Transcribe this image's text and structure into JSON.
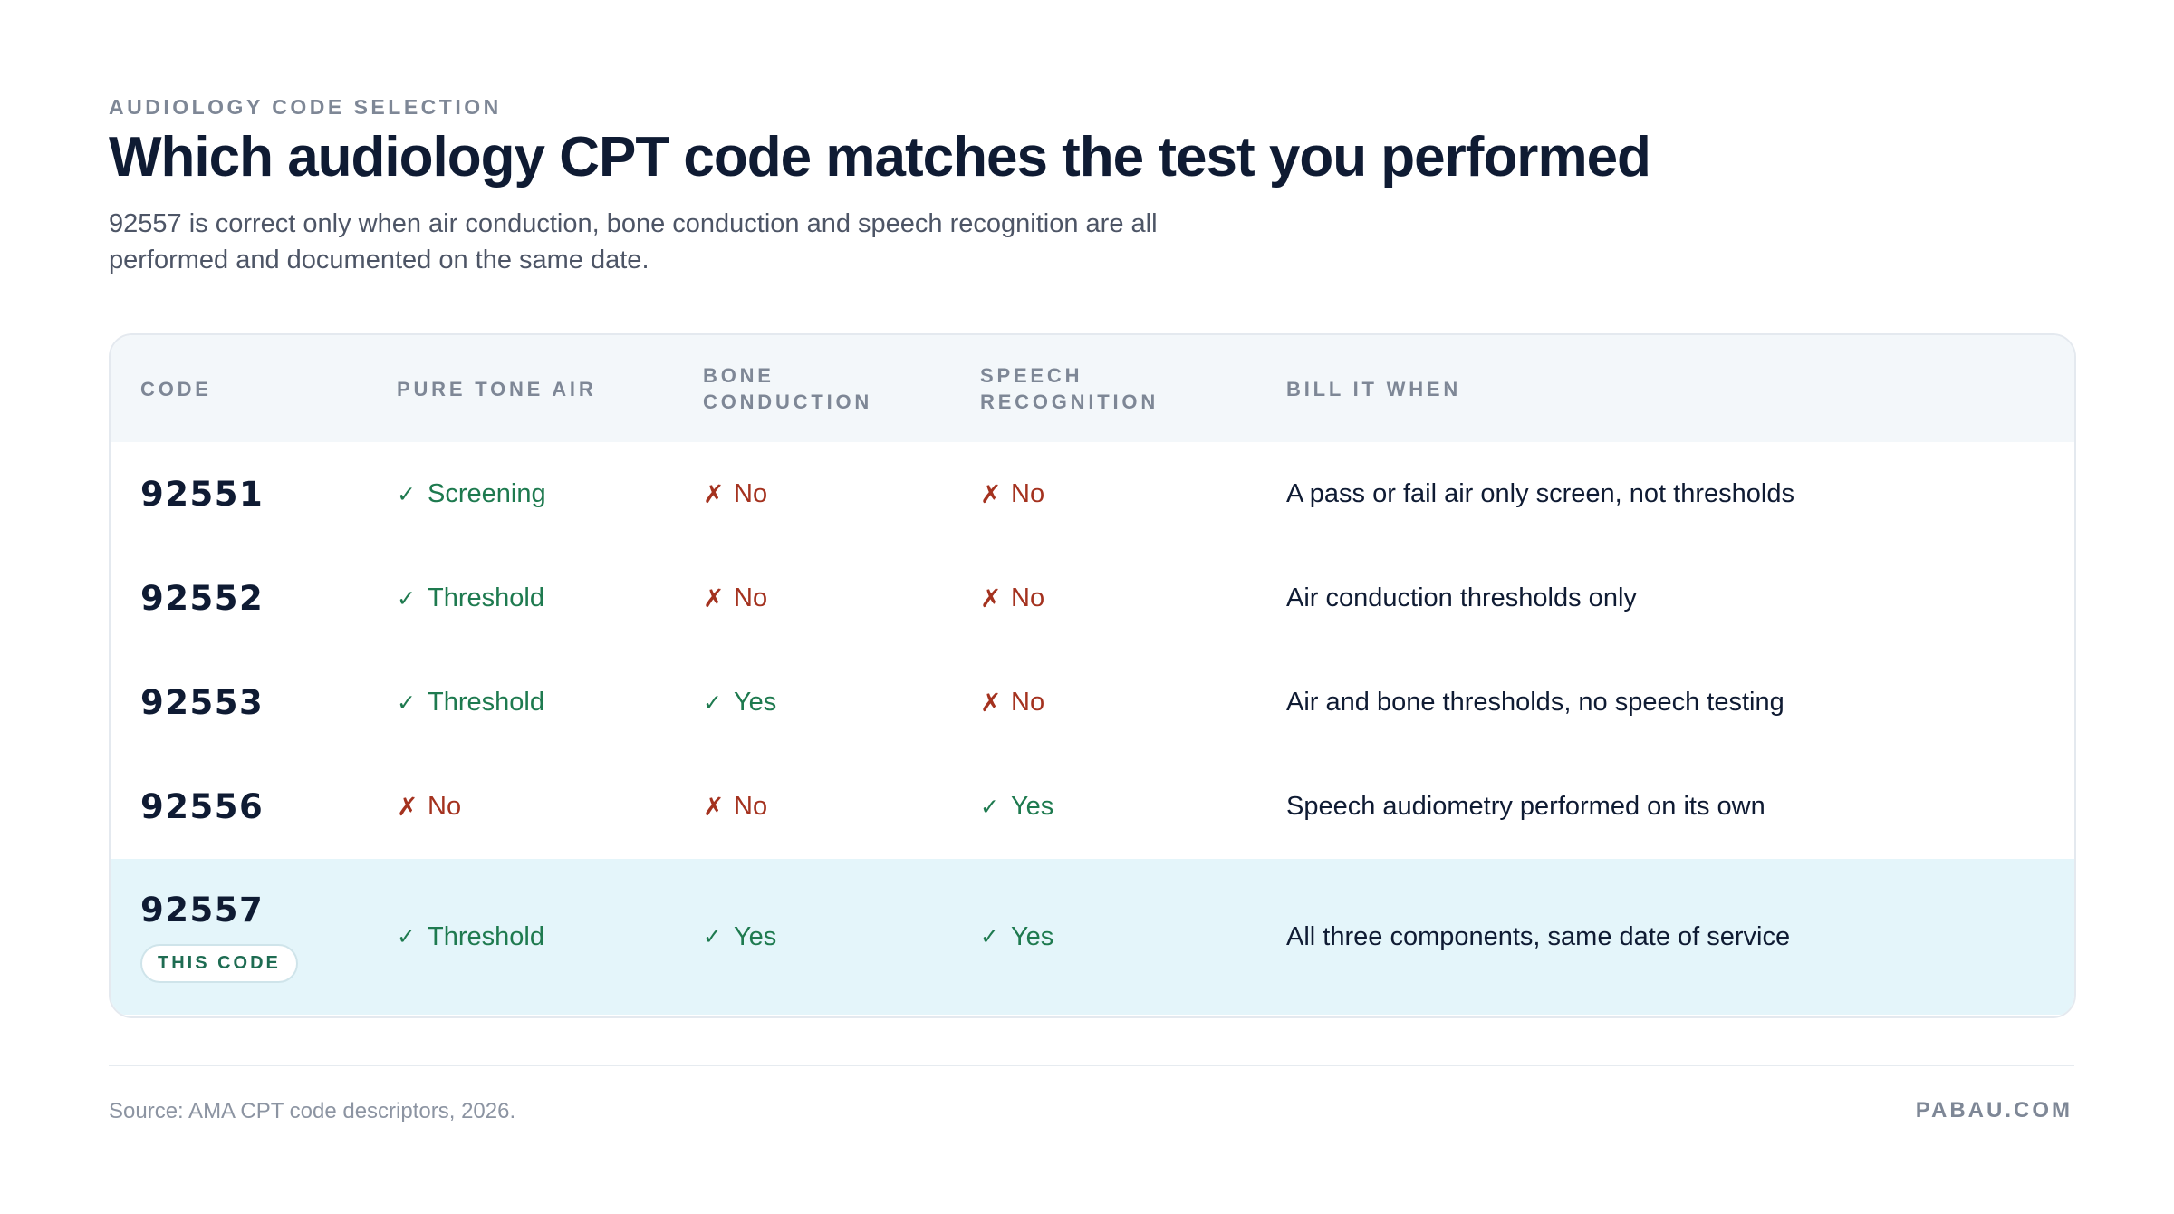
{
  "header": {
    "eyebrow": "AUDIOLOGY CODE SELECTION",
    "title": "Which audiology CPT code matches the test you performed",
    "subtitle": "92557 is correct only when air conduction, bone conduction and speech recognition are all performed and documented on the same date."
  },
  "table": {
    "columns": {
      "code": "CODE",
      "pure_tone_air": "PURE TONE AIR",
      "bone_line1": "BONE",
      "bone_line2": "CONDUCTION",
      "speech_line1": "SPEECH",
      "speech_line2": "RECOGNITION",
      "bill_it_when": "BILL IT WHEN"
    },
    "marks": {
      "yes": "✓",
      "no": "✗"
    },
    "rows": [
      {
        "code": "92551",
        "pure_tone_air": {
          "status": "yes",
          "label": "Screening"
        },
        "bone_conduction": {
          "status": "no",
          "label": "No"
        },
        "speech_recognition": {
          "status": "no",
          "label": "No"
        },
        "bill_it_when": "A pass or fail air only screen, not thresholds"
      },
      {
        "code": "92552",
        "pure_tone_air": {
          "status": "yes",
          "label": "Threshold"
        },
        "bone_conduction": {
          "status": "no",
          "label": "No"
        },
        "speech_recognition": {
          "status": "no",
          "label": "No"
        },
        "bill_it_when": "Air conduction thresholds only"
      },
      {
        "code": "92553",
        "pure_tone_air": {
          "status": "yes",
          "label": "Threshold"
        },
        "bone_conduction": {
          "status": "yes",
          "label": "Yes"
        },
        "speech_recognition": {
          "status": "no",
          "label": "No"
        },
        "bill_it_when": "Air and bone thresholds, no speech testing"
      },
      {
        "code": "92556",
        "pure_tone_air": {
          "status": "no",
          "label": "No"
        },
        "bone_conduction": {
          "status": "no",
          "label": "No"
        },
        "speech_recognition": {
          "status": "yes",
          "label": "Yes"
        },
        "bill_it_when": "Speech audiometry performed on its own"
      },
      {
        "code": "92557",
        "badge": "THIS CODE",
        "pure_tone_air": {
          "status": "yes",
          "label": "Threshold"
        },
        "bone_conduction": {
          "status": "yes",
          "label": "Yes"
        },
        "speech_recognition": {
          "status": "yes",
          "label": "Yes"
        },
        "bill_it_when": "All three components, same date of service"
      }
    ]
  },
  "footer": {
    "source": "Source: AMA CPT code descriptors, 2026.",
    "brand": "PABAU.COM"
  },
  "colors": {
    "yes": "#1e7a4f",
    "no": "#a4321f",
    "highlight_row": "#e4f5fa",
    "header_bg": "#f3f7fa"
  }
}
